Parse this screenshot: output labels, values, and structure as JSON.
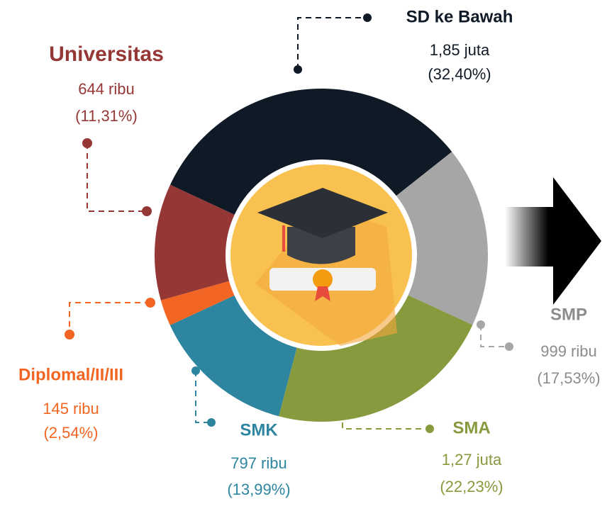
{
  "chart_data": {
    "type": "donut",
    "categories": [
      "SD ke Bawah",
      "SMP",
      "SMA",
      "SMK",
      "Diplomal/II/III",
      "Universitas"
    ],
    "amount_labels": [
      "1,85 juta",
      "999 ribu",
      "1,27 juta",
      "797 ribu",
      "145 ribu",
      "644 ribu"
    ],
    "values": [
      32.4,
      17.53,
      22.23,
      13.99,
      2.54,
      11.31
    ],
    "value_labels": [
      "(32,40%)",
      "(17,53%)",
      "(22,23%)",
      "(13,99%)",
      "(2,54%)",
      "(11,31%)"
    ],
    "colors": [
      "#0f1a26",
      "#a6a6a6",
      "#879a3e",
      "#2e85a0",
      "#f26522",
      "#953735"
    ]
  }
}
